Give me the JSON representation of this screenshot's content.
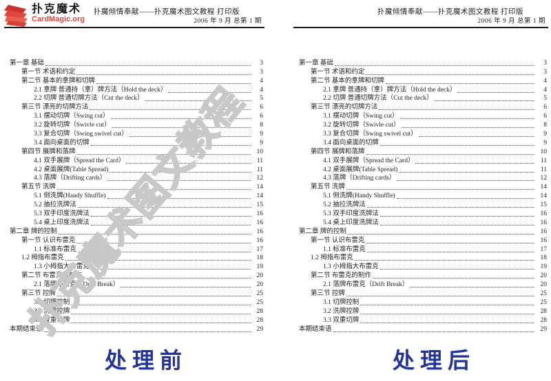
{
  "page_header": {
    "logo": {
      "icon": "card-fan-icon",
      "brand_cn": "扑克魔术",
      "brand_en": "CardMagic.org",
      "brand_color": "#e0483f"
    },
    "title_line": "扑魔倾情奉献——扑克魔术图文教程 打印版",
    "date_line": "2006 年 9 月  总第 1 期"
  },
  "watermark": {
    "text": "扑克魔术图文教程",
    "color": "#c8c8c8"
  },
  "toc": {
    "entries": [
      {
        "level": 0,
        "label": "第一章 基础",
        "page": "3"
      },
      {
        "level": 1,
        "label": "第一节 术语和约定",
        "page": "3"
      },
      {
        "level": 1,
        "label": "第二节 基本的拿牌和切牌",
        "page": "4"
      },
      {
        "level": 2,
        "label": "2.1 拿牌 普通持（拿）牌方法（Hold the deck）",
        "page": "4"
      },
      {
        "level": 2,
        "label": "2.2 切牌 普通切牌方法（Cut the deck）",
        "page": "5"
      },
      {
        "level": 1,
        "label": "第三节 漂亮的切牌方法",
        "page": "6"
      },
      {
        "level": 2,
        "label": "3.1 摆动切牌（Swing cut）",
        "page": "6"
      },
      {
        "level": 2,
        "label": "3.2 旋转切牌（Swivle cut）",
        "page": "8"
      },
      {
        "level": 2,
        "label": "3.3 复合切牌（Swing swivel cut）",
        "page": "9"
      },
      {
        "level": 2,
        "label": "3.4 面向桌面的切牌",
        "page": "9"
      },
      {
        "level": 1,
        "label": "第四节 展牌和落牌",
        "page": "10"
      },
      {
        "level": 2,
        "label": "4.1 双手展牌（Spread the Card）",
        "page": "11"
      },
      {
        "level": 2,
        "label": "4.2 桌面展牌(Table Spread)",
        "page": "11"
      },
      {
        "level": 2,
        "label": "4.3 落牌（Drifting cards）",
        "page": "12"
      },
      {
        "level": 1,
        "label": "第五节 洗牌",
        "page": "14"
      },
      {
        "level": 2,
        "label": "5.1 侧洗牌(Handy Shuffle)",
        "page": "14"
      },
      {
        "level": 2,
        "label": "5.2 抽拉洗牌法",
        "page": "15"
      },
      {
        "level": 2,
        "label": "5.3 双手印度洗牌法",
        "page": "16"
      },
      {
        "level": 2,
        "label": "5.4 桌上印度洗牌法",
        "page": "16"
      },
      {
        "level": 0,
        "label": "第二章 牌的控制",
        "page": "16"
      },
      {
        "level": 1,
        "label": "第一节 认识布雷克",
        "page": "16"
      },
      {
        "level": 2,
        "label": "1.1 标准布雷克",
        "page": "17"
      },
      {
        "level": 1,
        "label": "1.2 拇指布雷克",
        "page": "18"
      },
      {
        "level": 2,
        "label": "1.3 小拇指大布雷克",
        "page": "19"
      },
      {
        "level": 1,
        "label": "第二节 布雷克的制作",
        "page": "20"
      },
      {
        "level": 2,
        "label": "2.1 落牌布雷克（Drift Break）",
        "page": "20"
      },
      {
        "level": 1,
        "label": "第三节 控牌",
        "page": "25"
      },
      {
        "level": 2,
        "label": "3.1 切牌控制",
        "page": "25"
      },
      {
        "level": 2,
        "label": "3.2 洗牌控牌",
        "page": "28"
      },
      {
        "level": 2,
        "label": "3.3 双重切牌",
        "page": "28"
      },
      {
        "level": 0,
        "label": "本期结束语",
        "page": "29"
      }
    ]
  },
  "captions": {
    "before": "处理前",
    "after": "处理后",
    "color": "#22339b"
  }
}
